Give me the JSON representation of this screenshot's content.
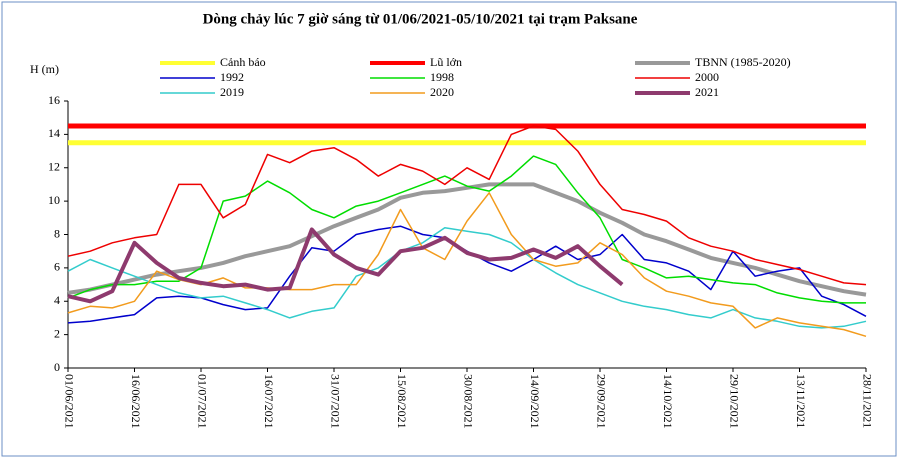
{
  "chart_data": {
    "type": "line",
    "title": "Dòng chảy lúc 7 giờ sáng từ 01/06/2021-05/10/2021 tại trạm Paksane",
    "y_label": "H (m)",
    "categories": [
      "01/06/2021",
      null,
      null,
      "16/06/2021",
      null,
      null,
      "01/07/2021",
      null,
      null,
      "16/07/2021",
      null,
      null,
      "31/07/2021",
      null,
      null,
      "15/08/2021",
      null,
      null,
      "30/08/2021",
      null,
      null,
      "14/09/2021",
      null,
      null,
      "29/09/2021",
      null,
      null,
      "14/10/2021",
      null,
      null,
      "29/10/2021",
      null,
      null,
      "13/11/2021",
      null,
      null,
      "28/11/2021"
    ],
    "ylim": [
      0,
      16
    ],
    "yticks": [
      0,
      2,
      4,
      6,
      8,
      10,
      12,
      14,
      16
    ],
    "reference_lines": [
      {
        "name": "Cảnh báo",
        "color": "#ffff33",
        "value": 13.5
      },
      {
        "name": "Lũ lớn",
        "color": "#ff0000",
        "value": 14.5
      }
    ],
    "series": [
      {
        "name": "TBNN (1985-2020)",
        "color": "#999999",
        "width": 4,
        "values": [
          4.5,
          4.7,
          5.0,
          5.3,
          5.6,
          5.8,
          6.0,
          6.3,
          6.7,
          7.0,
          7.3,
          7.9,
          8.5,
          9.0,
          9.5,
          10.2,
          10.5,
          10.6,
          10.8,
          11.0,
          11.0,
          11.0,
          10.5,
          10.0,
          9.3,
          8.7,
          8.0,
          7.6,
          7.1,
          6.6,
          6.3,
          6.0,
          5.6,
          5.2,
          4.9,
          4.6,
          4.4
        ]
      },
      {
        "name": "1992",
        "color": "#0000cc",
        "width": 1.5,
        "values": [
          2.7,
          2.8,
          3.0,
          3.2,
          4.2,
          4.3,
          4.2,
          3.8,
          3.5,
          3.6,
          5.5,
          7.2,
          7.0,
          8.0,
          8.3,
          8.5,
          8.0,
          7.8,
          7.0,
          6.3,
          5.8,
          6.5,
          7.3,
          6.5,
          6.8,
          8.0,
          6.5,
          6.3,
          5.8,
          4.7,
          7.0,
          5.5,
          5.8,
          6.0,
          4.3,
          3.8,
          3.1
        ]
      },
      {
        "name": "1998",
        "color": "#00dd00",
        "width": 1.5,
        "values": [
          4.2,
          4.7,
          5.0,
          5.0,
          5.2,
          5.2,
          6.0,
          10.0,
          10.3,
          11.2,
          10.5,
          9.5,
          9.0,
          9.7,
          10.0,
          10.5,
          11.0,
          11.5,
          10.9,
          10.6,
          11.5,
          12.7,
          12.2,
          10.5,
          9.0,
          6.5,
          6.0,
          5.4,
          5.5,
          5.3,
          5.1,
          5.0,
          4.5,
          4.2,
          4.0,
          3.9,
          3.9
        ]
      },
      {
        "name": "2000",
        "color": "#ee0000",
        "width": 1.5,
        "values": [
          6.7,
          7.0,
          7.5,
          7.8,
          8.0,
          11.0,
          11.0,
          9.0,
          9.8,
          12.8,
          12.3,
          13.0,
          13.2,
          12.5,
          11.5,
          12.2,
          11.8,
          11.0,
          12.0,
          11.3,
          14.0,
          14.5,
          14.3,
          13.0,
          11.0,
          9.5,
          9.2,
          8.8,
          7.8,
          7.3,
          7.0,
          6.5,
          6.2,
          5.9,
          5.5,
          5.1,
          5.0
        ]
      },
      {
        "name": "2019",
        "color": "#33cccc",
        "width": 1.5,
        "values": [
          5.8,
          6.5,
          6.0,
          5.5,
          5.0,
          4.5,
          4.2,
          4.3,
          3.9,
          3.5,
          3.0,
          3.4,
          3.6,
          5.5,
          6.0,
          7.0,
          7.5,
          8.4,
          8.2,
          8.0,
          7.5,
          6.5,
          5.7,
          5.0,
          4.5,
          4.0,
          3.7,
          3.5,
          3.2,
          3.0,
          3.5,
          3.0,
          2.8,
          2.5,
          2.4,
          2.5,
          2.8
        ]
      },
      {
        "name": "2020",
        "color": "#f29b1d",
        "width": 1.5,
        "values": [
          3.3,
          3.7,
          3.6,
          4.0,
          5.8,
          5.3,
          5.0,
          5.4,
          4.8,
          4.8,
          4.7,
          4.7,
          5.0,
          5.0,
          6.8,
          9.5,
          7.2,
          6.5,
          8.8,
          10.5,
          8.0,
          6.5,
          6.1,
          6.3,
          7.5,
          6.8,
          5.4,
          4.6,
          4.3,
          3.9,
          3.7,
          2.4,
          3.0,
          2.7,
          2.5,
          2.3,
          1.9
        ]
      },
      {
        "name": "2021",
        "color": "#8e3a6e",
        "width": 4,
        "values": [
          4.3,
          4.0,
          4.6,
          7.5,
          6.3,
          5.4,
          5.1,
          4.9,
          5.0,
          4.7,
          4.8,
          8.3,
          6.8,
          6.0,
          5.6,
          7.0,
          7.2,
          7.8,
          6.9,
          6.5,
          6.6,
          7.1,
          6.6,
          7.3,
          6.1,
          5.0,
          null,
          null,
          null,
          null,
          null,
          null,
          null,
          null,
          null,
          null,
          null
        ]
      }
    ]
  }
}
